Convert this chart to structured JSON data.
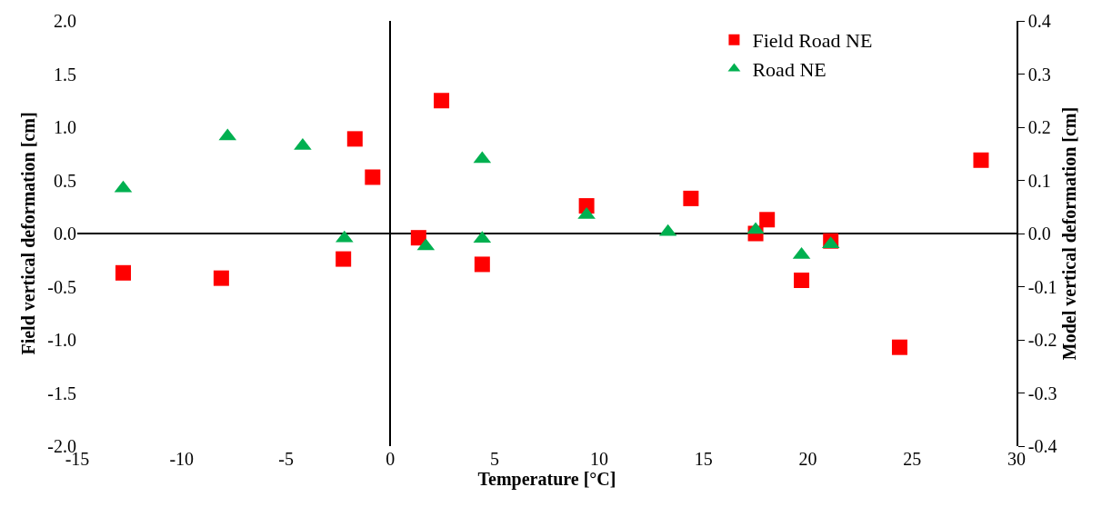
{
  "chart_data": {
    "type": "scatter",
    "xlabel": "Temperature [°C]",
    "ylabel": "Field vertical deformation [cm]",
    "y2label": "Model vertical deformation [cm]",
    "xlim": [
      -15,
      30
    ],
    "xticks": [
      -15,
      -10,
      -5,
      0,
      5,
      10,
      15,
      20,
      25,
      30
    ],
    "ylim": [
      -2,
      2
    ],
    "yticks": [
      {
        "value": -2,
        "label": "-2.0"
      },
      -1.5,
      {
        "value": -1,
        "label": "-1.0"
      },
      -0.5,
      {
        "value": 0,
        "label": "0.0"
      },
      0.5,
      {
        "value": 1,
        "label": "1.0"
      },
      1.5,
      {
        "value": 2,
        "label": "2.0"
      }
    ],
    "y2lim": [
      -0.4,
      0.4
    ],
    "y2ticks": [
      -0.4,
      -0.3,
      -0.2,
      -0.1,
      {
        "value": 0,
        "label": "0.0"
      },
      0.1,
      0.2,
      0.3,
      0.4
    ],
    "legend": "top right",
    "series": [
      {
        "name": "Field Road NE",
        "color": "#ff0000",
        "marker": "square",
        "x": [
          -12.8,
          -8.1,
          -2.25,
          -1.7,
          -0.85,
          1.35,
          2.45,
          4.4,
          9.4,
          14.4,
          17.5,
          18.05,
          19.7,
          21.1,
          24.4,
          28.3
        ],
        "values": [
          -0.37,
          -0.42,
          -0.24,
          0.89,
          0.53,
          -0.04,
          1.25,
          -0.29,
          0.26,
          0.33,
          0.0,
          0.13,
          -0.44,
          -0.07,
          -1.07,
          0.69
        ]
      },
      {
        "name": "Road NE",
        "color": "#00b050",
        "marker": "triangle",
        "axis": "y2",
        "x": [
          -12.8,
          -7.8,
          -4.2,
          -2.2,
          1.7,
          4.4,
          4.4,
          9.4,
          13.3,
          17.5,
          19.7,
          21.1
        ],
        "values": [
          0.085,
          0.183,
          0.165,
          -0.009,
          -0.024,
          0.14,
          -0.01,
          0.035,
          0.003,
          0.007,
          -0.04,
          -0.02
        ]
      }
    ]
  }
}
